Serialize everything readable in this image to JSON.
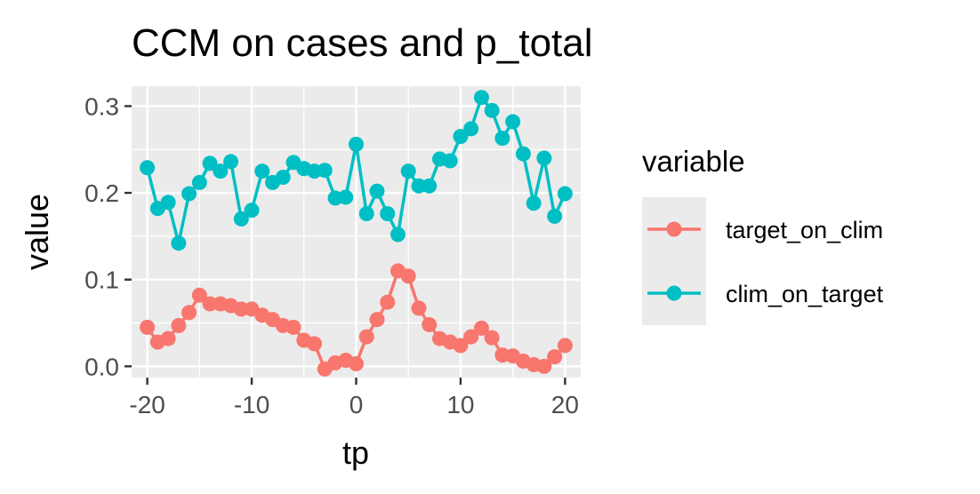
{
  "chart_data": {
    "type": "line",
    "title": "CCM on cases and p_total",
    "xlabel": "tp",
    "ylabel": "value",
    "xlim": [
      -21.5,
      21.5
    ],
    "ylim": [
      -0.013,
      0.323
    ],
    "x_ticks": [
      -20,
      -10,
      0,
      10,
      20
    ],
    "x_tick_labels": [
      "-20",
      "-10",
      "0",
      "10",
      "20"
    ],
    "y_ticks": [
      0.0,
      0.1,
      0.2,
      0.3
    ],
    "y_tick_labels": [
      "0.0",
      "0.1",
      "0.2",
      "0.3"
    ],
    "grid": true,
    "legend": {
      "title": "variable",
      "position": "right"
    },
    "x": [
      -20,
      -19,
      -18,
      -17,
      -16,
      -15,
      -14,
      -13,
      -12,
      -11,
      -10,
      -9,
      -8,
      -7,
      -6,
      -5,
      -4,
      -3,
      -2,
      -1,
      0,
      1,
      2,
      3,
      4,
      5,
      6,
      7,
      8,
      9,
      10,
      11,
      12,
      13,
      14,
      15,
      16,
      17,
      18,
      19,
      20
    ],
    "series": [
      {
        "name": "target_on_clim",
        "color": "#F8766D",
        "values": [
          0.045,
          0.028,
          0.032,
          0.047,
          0.062,
          0.082,
          0.072,
          0.072,
          0.07,
          0.066,
          0.066,
          0.059,
          0.054,
          0.047,
          0.045,
          0.03,
          0.026,
          -0.003,
          0.004,
          0.007,
          0.003,
          0.034,
          0.054,
          0.074,
          0.11,
          0.104,
          0.067,
          0.048,
          0.032,
          0.028,
          0.024,
          0.034,
          0.044,
          0.033,
          0.013,
          0.012,
          0.006,
          0.002,
          0.0,
          0.011,
          0.024
        ]
      },
      {
        "name": "clim_on_target",
        "color": "#00BFC4",
        "values": [
          0.229,
          0.182,
          0.189,
          0.142,
          0.199,
          0.212,
          0.234,
          0.225,
          0.236,
          0.17,
          0.18,
          0.225,
          0.212,
          0.218,
          0.235,
          0.228,
          0.225,
          0.226,
          0.194,
          0.195,
          0.256,
          0.176,
          0.202,
          0.176,
          0.152,
          0.225,
          0.208,
          0.208,
          0.239,
          0.237,
          0.265,
          0.274,
          0.31,
          0.295,
          0.263,
          0.282,
          0.245,
          0.188,
          0.24,
          0.173,
          0.199
        ]
      }
    ]
  }
}
